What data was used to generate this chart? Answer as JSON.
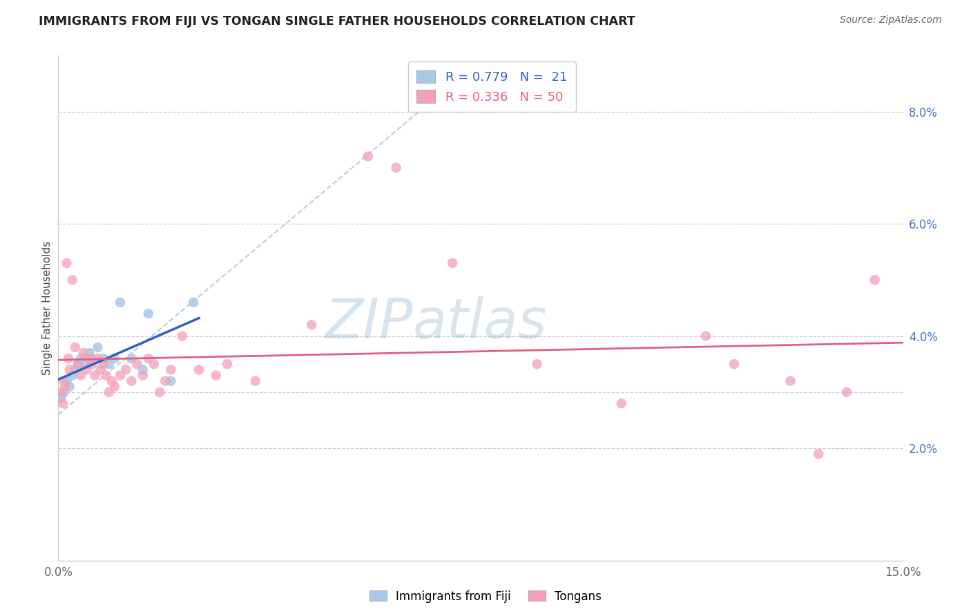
{
  "title": "IMMIGRANTS FROM FIJI VS TONGAN SINGLE FATHER HOUSEHOLDS CORRELATION CHART",
  "source": "Source: ZipAtlas.com",
  "ylabel": "Single Father Households",
  "right_ytick_vals": [
    2.0,
    4.0,
    6.0,
    8.0
  ],
  "xmin": 0.0,
  "xmax": 15.0,
  "ymin": 0.0,
  "ymax": 9.0,
  "fiji_color": "#a8c8e8",
  "tongan_color": "#f4a0b8",
  "fiji_line_color": "#3060c0",
  "tongan_line_color": "#e06080",
  "diagonal_color": "#b8cce4",
  "fiji_points_x": [
    0.05,
    0.1,
    0.15,
    0.2,
    0.25,
    0.3,
    0.35,
    0.4,
    0.5,
    0.55,
    0.6,
    0.7,
    0.8,
    0.9,
    1.0,
    1.1,
    1.3,
    1.5,
    1.6,
    2.0,
    2.4
  ],
  "fiji_points_y": [
    2.9,
    3.0,
    3.2,
    3.1,
    3.3,
    3.4,
    3.5,
    3.6,
    3.5,
    3.7,
    3.6,
    3.8,
    3.6,
    3.5,
    3.6,
    4.6,
    3.6,
    3.4,
    4.4,
    3.2,
    4.6
  ],
  "tongan_points_x": [
    0.05,
    0.08,
    0.1,
    0.12,
    0.15,
    0.18,
    0.2,
    0.25,
    0.3,
    0.35,
    0.4,
    0.45,
    0.5,
    0.55,
    0.6,
    0.65,
    0.7,
    0.75,
    0.8,
    0.85,
    0.9,
    0.95,
    1.0,
    1.1,
    1.2,
    1.3,
    1.4,
    1.5,
    1.6,
    1.7,
    1.8,
    1.9,
    2.0,
    2.2,
    2.5,
    2.8,
    3.0,
    3.5,
    4.5,
    5.5,
    6.0,
    7.0,
    8.5,
    10.0,
    11.5,
    12.0,
    13.0,
    13.5,
    14.0,
    14.5
  ],
  "tongan_points_y": [
    3.0,
    2.8,
    3.2,
    3.1,
    5.3,
    3.6,
    3.4,
    5.0,
    3.8,
    3.5,
    3.3,
    3.7,
    3.4,
    3.6,
    3.5,
    3.3,
    3.6,
    3.4,
    3.5,
    3.3,
    3.0,
    3.2,
    3.1,
    3.3,
    3.4,
    3.2,
    3.5,
    3.3,
    3.6,
    3.5,
    3.0,
    3.2,
    3.4,
    4.0,
    3.4,
    3.3,
    3.5,
    3.2,
    4.2,
    7.2,
    7.0,
    5.3,
    3.5,
    2.8,
    4.0,
    3.5,
    3.2,
    1.9,
    3.0,
    5.0
  ]
}
